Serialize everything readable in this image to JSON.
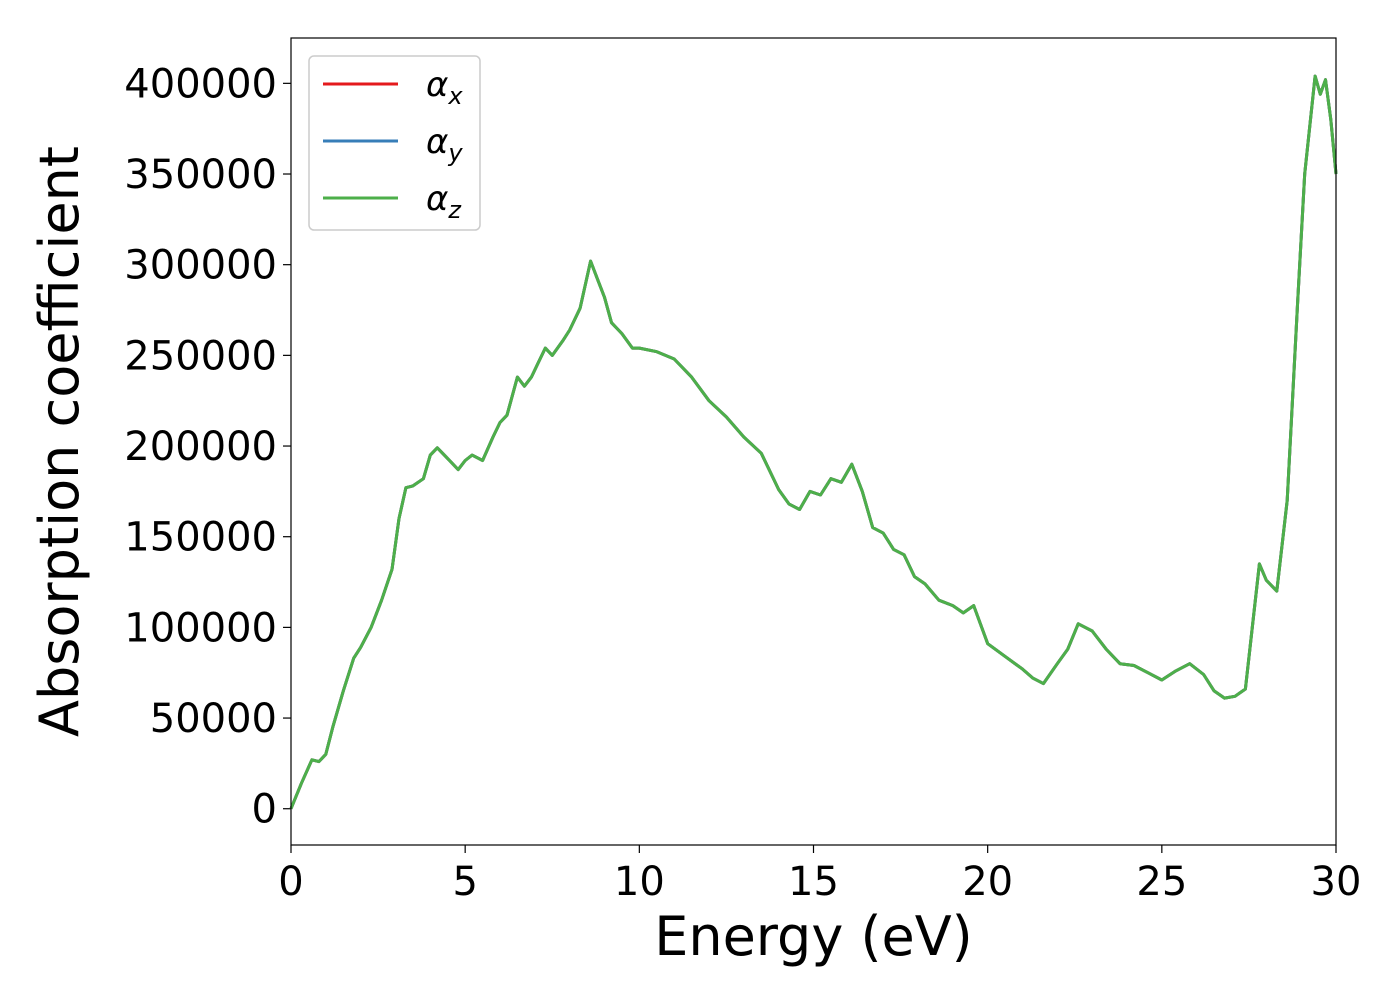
{
  "chart_data": {
    "type": "line",
    "xlabel": "Energy (eV)",
    "ylabel": "Absorption coefficient",
    "xlim": [
      0,
      30
    ],
    "ylim": [
      -20000,
      425000
    ],
    "xticks": [
      0,
      5,
      10,
      15,
      20,
      25,
      30
    ],
    "yticks": [
      0,
      50000,
      100000,
      150000,
      200000,
      250000,
      300000,
      350000,
      400000
    ],
    "grid": false,
    "legend_position": "top-left",
    "series": [
      {
        "name": "α",
        "subscript": "x",
        "color": "#e41a1c"
      },
      {
        "name": "α",
        "subscript": "y",
        "color": "#377eb8"
      },
      {
        "name": "α",
        "subscript": "z",
        "color": "#4daf4a"
      }
    ],
    "x": [
      0,
      0.3,
      0.6,
      0.8,
      1.0,
      1.2,
      1.5,
      1.8,
      2.0,
      2.3,
      2.6,
      2.9,
      3.1,
      3.3,
      3.5,
      3.8,
      4.0,
      4.2,
      4.5,
      4.8,
      5.0,
      5.2,
      5.5,
      5.8,
      6.0,
      6.2,
      6.5,
      6.7,
      6.9,
      7.1,
      7.3,
      7.5,
      7.8,
      8.0,
      8.3,
      8.6,
      8.8,
      9.0,
      9.2,
      9.5,
      9.8,
      10.0,
      10.5,
      11.0,
      11.5,
      12.0,
      12.5,
      13.0,
      13.5,
      14.0,
      14.3,
      14.6,
      14.9,
      15.2,
      15.5,
      15.8,
      16.1,
      16.4,
      16.7,
      17.0,
      17.3,
      17.6,
      17.9,
      18.2,
      18.6,
      19.0,
      19.3,
      19.6,
      20.0,
      20.5,
      21.0,
      21.3,
      21.6,
      22.0,
      22.3,
      22.6,
      23.0,
      23.4,
      23.8,
      24.2,
      24.6,
      25.0,
      25.4,
      25.8,
      26.2,
      26.5,
      26.8,
      27.1,
      27.4,
      27.8,
      28.0,
      28.3,
      28.6,
      28.9,
      29.1,
      29.4,
      29.55,
      29.7,
      29.85,
      30.0
    ],
    "values": [
      0,
      14000,
      27000,
      26000,
      30000,
      45000,
      65000,
      83000,
      89000,
      100000,
      115000,
      132000,
      160000,
      177000,
      178000,
      182000,
      195000,
      199000,
      193000,
      187000,
      192000,
      195000,
      192000,
      205000,
      213000,
      217000,
      238000,
      233000,
      238000,
      246000,
      254000,
      250000,
      258000,
      264000,
      276000,
      302000,
      292000,
      282000,
      268000,
      262000,
      254000,
      254000,
      252000,
      248000,
      238000,
      225000,
      216000,
      205000,
      196000,
      176000,
      168000,
      165000,
      175000,
      173000,
      182000,
      180000,
      190000,
      175000,
      155000,
      152000,
      143000,
      140000,
      128000,
      124000,
      115000,
      112000,
      108000,
      112000,
      91000,
      84000,
      77000,
      72000,
      69000,
      80000,
      88000,
      102000,
      98000,
      88000,
      80000,
      79000,
      75000,
      71000,
      76000,
      80000,
      74000,
      65000,
      61000,
      62000,
      66000,
      135000,
      126000,
      120000,
      170000,
      280000,
      350000,
      404000,
      394000,
      402000,
      380000,
      350000
    ]
  }
}
